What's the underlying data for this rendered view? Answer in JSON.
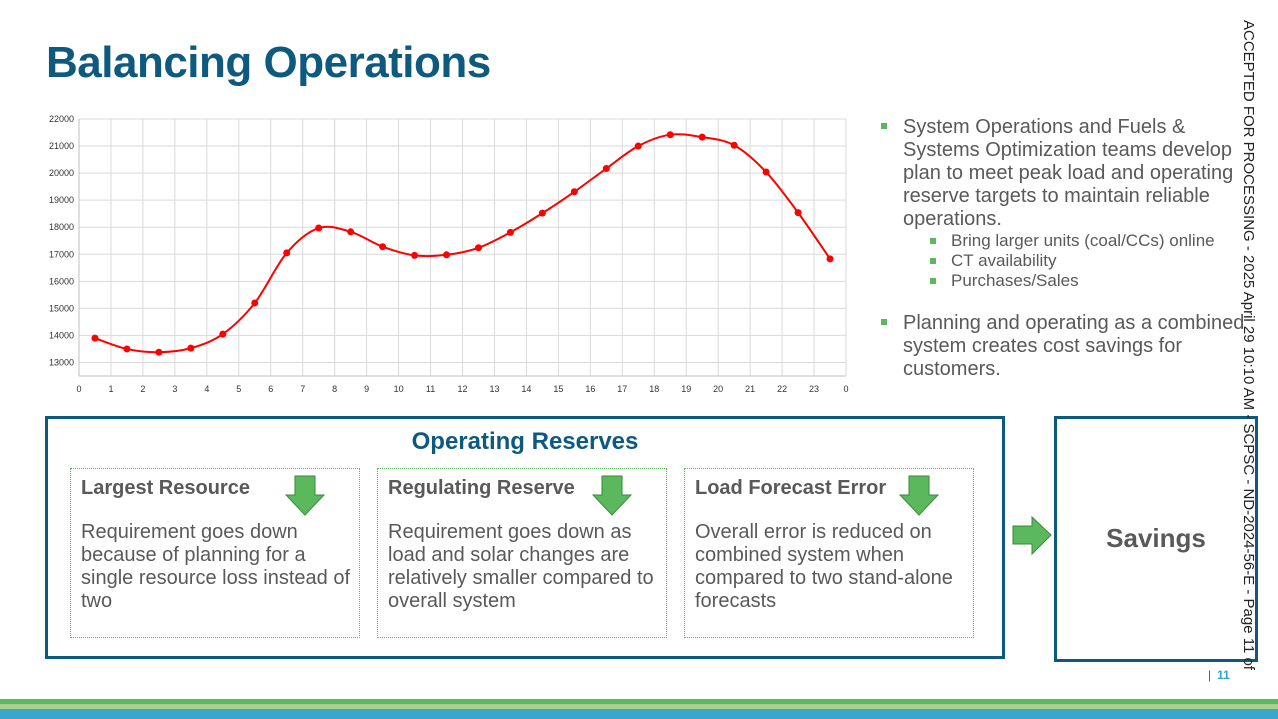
{
  "title": "Balancing Operations",
  "chart_data": {
    "type": "line",
    "x": [
      0.5,
      1.5,
      2.5,
      3.5,
      4.5,
      5.5,
      6.5,
      7.5,
      8.5,
      9.5,
      10.5,
      11.5,
      12.5,
      13.5,
      14.5,
      15.5,
      16.5,
      17.5,
      18.5,
      19.5,
      20.5,
      21.5,
      22.5,
      23.5
    ],
    "series": [
      {
        "values": [
          13900,
          13500,
          13380,
          13530,
          14050,
          15200,
          17050,
          17970,
          17830,
          17280,
          16960,
          16980,
          17240,
          17810,
          18520,
          19310,
          20170,
          21000,
          21420,
          21330,
          21030,
          20040,
          18540,
          16830
        ],
        "color": "#ff0000"
      }
    ],
    "x_ticks": [
      "0",
      "1",
      "2",
      "3",
      "4",
      "5",
      "6",
      "7",
      "8",
      "9",
      "10",
      "11",
      "12",
      "13",
      "14",
      "15",
      "16",
      "17",
      "18",
      "19",
      "20",
      "21",
      "22",
      "23",
      "0"
    ],
    "y_ticks": [
      "13000",
      "14000",
      "15000",
      "16000",
      "17000",
      "18000",
      "19000",
      "20000",
      "21000",
      "22000"
    ],
    "ylim": [
      12500,
      22000
    ],
    "xlim": [
      0,
      24
    ],
    "grid": true,
    "title": "",
    "xlabel": "",
    "ylabel": ""
  },
  "bullets": [
    {
      "text": "System Operations and Fuels & Systems Optimization teams develop plan to meet peak load and operating reserve targets to maintain reliable operations.",
      "subs": [
        "Bring larger units (coal/CCs) online",
        "CT availability",
        "Purchases/Sales"
      ]
    },
    {
      "text": "Planning and operating as a combined system creates cost savings for customers.",
      "subs": []
    }
  ],
  "reserves": {
    "title": "Operating Reserves",
    "boxes": [
      {
        "title": "Largest Resource",
        "body": "Requirement goes down because of planning for a single resource loss instead of two"
      },
      {
        "title": "Regulating Reserve",
        "body": "Requirement goes down as load and solar changes are relatively smaller compared to overall system"
      },
      {
        "title": "Load Forecast Error",
        "body": "Overall error is reduced on combined system when compared to two stand-alone forecasts"
      }
    ],
    "arrow_icon": "down-arrow-icon"
  },
  "savings": "Savings",
  "page_number": "11",
  "page_sep": "|",
  "stamp": "ACCEPTED FOR PROCESSING - 2025 April 29 10:10 AM - SCPSC - ND-2024-56-E - Page 11 of",
  "colors": {
    "title": "#0d5a7e",
    "accent_green": "#5cb85c",
    "line": "#ff0000",
    "border": "#0d5a7e"
  }
}
